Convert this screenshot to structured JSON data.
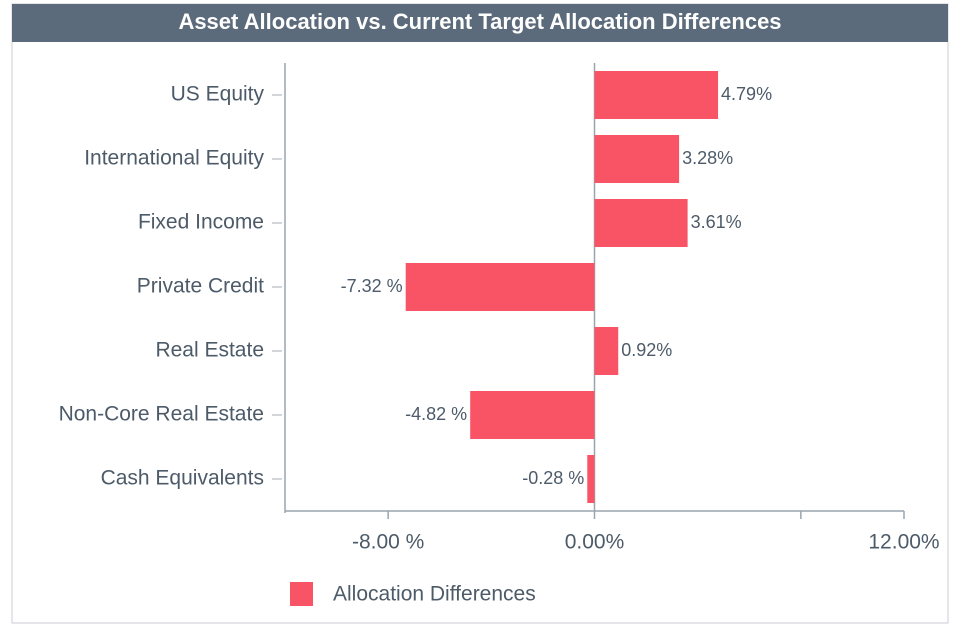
{
  "chart_data": {
    "type": "bar",
    "orientation": "horizontal",
    "title": "Asset Allocation vs. Current Target Allocation Differences",
    "categories": [
      "US Equity",
      "International Equity",
      "Fixed Income",
      "Private Credit",
      "Real Estate",
      "Non-Core Real Estate",
      "Cash Equivalents"
    ],
    "series": [
      {
        "name": "Allocation Differences",
        "color": "#f85465",
        "values": [
          4.79,
          3.28,
          3.61,
          -7.32,
          0.92,
          -4.82,
          -0.28
        ],
        "value_labels": [
          "4.79%",
          "3.28%",
          "3.61%",
          "-7.32 %",
          "0.92%",
          "-4.82 %",
          "-0.28 %"
        ]
      }
    ],
    "xlim": [
      -12,
      12
    ],
    "xticks": [
      {
        "value": -8,
        "label": "-8.00 %"
      },
      {
        "value": 0,
        "label": "0.00%"
      },
      {
        "value": 8,
        "label": null
      },
      {
        "value": 12,
        "label": "12.00%"
      }
    ],
    "legend": "bottom-left"
  }
}
